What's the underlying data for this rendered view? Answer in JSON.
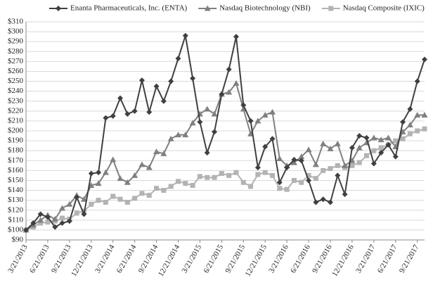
{
  "chart_data": {
    "type": "line",
    "categories": [
      "3/21/2013",
      null,
      null,
      "6/21/2013",
      null,
      null,
      "9/21/2013",
      null,
      null,
      "12/21/2013",
      null,
      null,
      "3/21/2014",
      null,
      null,
      "6/21/2014",
      null,
      null,
      "9/21/2014",
      null,
      null,
      "12/21/2014",
      null,
      null,
      "3/21/2015",
      null,
      null,
      "6/21/2015",
      null,
      null,
      "9/21/2015",
      null,
      null,
      "12/21/2015",
      null,
      null,
      "3/21/2016",
      null,
      null,
      "6/21/2016",
      null,
      null,
      "9/21/2016",
      null,
      null,
      "12/21/2016",
      null,
      null,
      "3/21/2017",
      null,
      null,
      "6/21/2017",
      null,
      null,
      "9/21/2017",
      null
    ],
    "series": [
      {
        "name": "Enanta Pharmaceuticals, Inc. (ENTA)",
        "color": "#404040",
        "marker": "diamond",
        "values": [
          100,
          107,
          116,
          113,
          103,
          107,
          109,
          133,
          116,
          157,
          158,
          213,
          215,
          233,
          217,
          220,
          251,
          219,
          245,
          230,
          250,
          273,
          296,
          253,
          209,
          178,
          199,
          237,
          262,
          295,
          226,
          210,
          163,
          184,
          192,
          148,
          163,
          171,
          170,
          150,
          128,
          131,
          128,
          155,
          136,
          183,
          195,
          193,
          167,
          178,
          186,
          174,
          209,
          222,
          250,
          272
        ]
      },
      {
        "name": "Nasdaq Biotechnology (NBI)",
        "color": "#808080",
        "marker": "triangle",
        "values": [
          100,
          105,
          110,
          115,
          111,
          122,
          126,
          135,
          131,
          145,
          147,
          158,
          171,
          152,
          148,
          155,
          166,
          163,
          179,
          177,
          192,
          196,
          196,
          208,
          217,
          222,
          217,
          237,
          239,
          248,
          222,
          197,
          210,
          216,
          219,
          172,
          165,
          168,
          174,
          181,
          166,
          187,
          182,
          187,
          165,
          170,
          183,
          188,
          193,
          191,
          193,
          184,
          199,
          206,
          216,
          216
        ]
      },
      {
        "name": "Nasdaq Composite (IXIC)",
        "color": "#b3b3b3",
        "marker": "square",
        "values": [
          100,
          103,
          107,
          108,
          109,
          112,
          111,
          117,
          119,
          126,
          130,
          128,
          134,
          131,
          128,
          132,
          137,
          135,
          142,
          140,
          144,
          149,
          147,
          145,
          154,
          153,
          153,
          157,
          155,
          158,
          148,
          144,
          156,
          158,
          155,
          142,
          141,
          150,
          148,
          155,
          152,
          160,
          162,
          165,
          163,
          165,
          168,
          175,
          180,
          183,
          186,
          190,
          192,
          197,
          200,
          202
        ]
      }
    ],
    "ylim": [
      90,
      310
    ],
    "yticks": [
      {
        "value": 90,
        "label": "$90"
      },
      {
        "value": 100,
        "label": "$100"
      },
      {
        "value": 110,
        "label": "$110"
      },
      {
        "value": 120,
        "label": "$120"
      },
      {
        "value": 130,
        "label": "$130"
      },
      {
        "value": 140,
        "label": "$140"
      },
      {
        "value": 150,
        "label": "$150"
      },
      {
        "value": 160,
        "label": "$160"
      },
      {
        "value": 170,
        "label": "$170"
      },
      {
        "value": 180,
        "label": "$180"
      },
      {
        "value": 190,
        "label": "$190"
      },
      {
        "value": 200,
        "label": "$200"
      },
      {
        "value": 210,
        "label": "$210"
      },
      {
        "value": 220,
        "label": "$220"
      },
      {
        "value": 230,
        "label": "$230"
      },
      {
        "value": 240,
        "label": "$240"
      },
      {
        "value": 250,
        "label": "$250"
      },
      {
        "value": 260,
        "label": "$260"
      },
      {
        "value": 270,
        "label": "$270"
      },
      {
        "value": 280,
        "label": "$280"
      },
      {
        "value": 290,
        "label": "$290"
      },
      {
        "value": 300,
        "label": "$300"
      },
      {
        "value": 310,
        "label": "$310"
      }
    ],
    "grid": true,
    "legend": "top"
  }
}
